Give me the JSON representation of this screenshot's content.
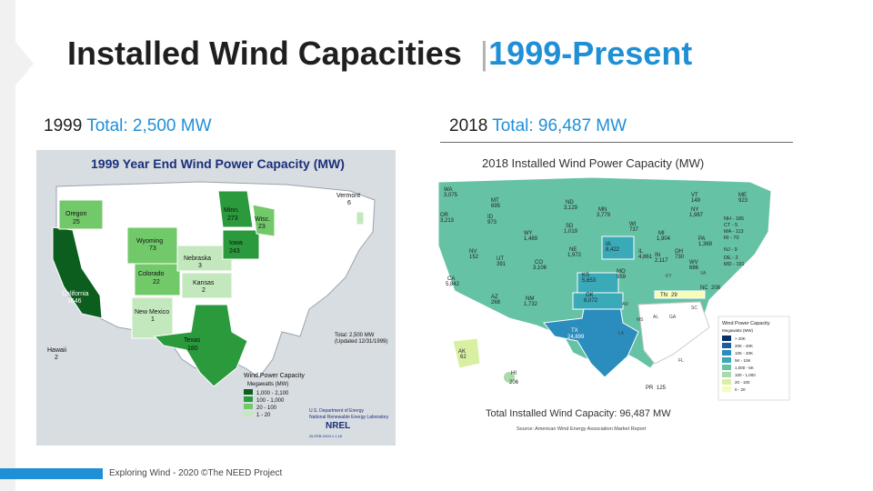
{
  "slide": {
    "title": "Installed Wind Capacities",
    "title_separator": "|",
    "title_accent": "1999-Present",
    "left_label": "1999",
    "left_total": "Total: 2,500 MW",
    "right_label": "2018",
    "right_total": "Total: 96,487 MW",
    "footer": "Exploring Wind - 2020 ©The NEED Project"
  },
  "map1999": {
    "title": "1999 Year End Wind Power Capacity (MW)",
    "states": [
      {
        "name": "Oregon",
        "value": "25"
      },
      {
        "name": "California",
        "value": "1646"
      },
      {
        "name": "Wyoming",
        "value": "73"
      },
      {
        "name": "Colorado",
        "value": "22"
      },
      {
        "name": "New Mexico",
        "value": "1"
      },
      {
        "name": "Texas",
        "value": "180"
      },
      {
        "name": "Nebraska",
        "value": "3"
      },
      {
        "name": "Kansas",
        "value": "2"
      },
      {
        "name": "Minn.",
        "value": "273"
      },
      {
        "name": "Iowa",
        "value": "243"
      },
      {
        "name": "Wisc.",
        "value": "23"
      },
      {
        "name": "Vermont",
        "value": "6"
      },
      {
        "name": "Hawaii",
        "value": "2"
      }
    ],
    "total_box": {
      "line1": "Total: 2,500 MW",
      "line2": "(Updated 12/31/1999)"
    },
    "legend": {
      "title": "Wind Power Capacity",
      "subtitle": "Megawatts (MW)",
      "items": [
        {
          "label": "1,000 - 2,100",
          "color": "#0c5e1e"
        },
        {
          "label": "100 - 1,000",
          "color": "#2a9a3c"
        },
        {
          "label": "20 - 100",
          "color": "#72c96a"
        },
        {
          "label": "1 - 20",
          "color": "#c4e8bd"
        }
      ]
    },
    "credits": [
      "U.S. Department of Energy",
      "National Renewable Energy Laboratory"
    ],
    "nrel_logo": "NREL",
    "date_code": "26-FEB-2004 1.1.18"
  },
  "map2018": {
    "title": "2018 Installed Wind Power Capacity (MW)",
    "states": [
      {
        "name": "WA",
        "value": "3,075"
      },
      {
        "name": "OR",
        "value": "3,213"
      },
      {
        "name": "MT",
        "value": "695"
      },
      {
        "name": "ID",
        "value": "973"
      },
      {
        "name": "WY",
        "value": "1,489"
      },
      {
        "name": "ND",
        "value": "3,129"
      },
      {
        "name": "SD",
        "value": "1,019"
      },
      {
        "name": "MN",
        "value": "3,779"
      },
      {
        "name": "NE",
        "value": "1,972"
      },
      {
        "name": "IA",
        "value": "8,422"
      },
      {
        "name": "WI",
        "value": "737"
      },
      {
        "name": "MI",
        "value": "1,904"
      },
      {
        "name": "NY",
        "value": "1,987"
      },
      {
        "name": "VT",
        "value": "149"
      },
      {
        "name": "ME",
        "value": "923"
      },
      {
        "name": "NV",
        "value": "152"
      },
      {
        "name": "UT",
        "value": "391"
      },
      {
        "name": "CO",
        "value": "3,106"
      },
      {
        "name": "CA",
        "value": "5,842"
      },
      {
        "name": "AZ",
        "value": "268"
      },
      {
        "name": "NM",
        "value": "1,732"
      },
      {
        "name": "KS",
        "value": "5,653"
      },
      {
        "name": "OK",
        "value": "8,072"
      },
      {
        "name": "TX",
        "value": "24,899"
      },
      {
        "name": "MO",
        "value": "959"
      },
      {
        "name": "IL",
        "value": "4,861"
      },
      {
        "name": "IN",
        "value": "2,117"
      },
      {
        "name": "OH",
        "value": "730"
      },
      {
        "name": "PA",
        "value": "1,369"
      },
      {
        "name": "WV",
        "value": "686"
      },
      {
        "name": "TN",
        "value": "29"
      },
      {
        "name": "NC",
        "value": "208"
      },
      {
        "name": "AK",
        "value": "62"
      },
      {
        "name": "HI",
        "value": "206"
      },
      {
        "name": "PR",
        "value": "125"
      }
    ],
    "northeast_list": [
      "NH - 185",
      "CT - 5",
      "MA - 113",
      "RI - 70",
      "NJ - 9",
      "DE - 2",
      "MD - 191"
    ],
    "small_labels": [
      "AR",
      "MS",
      "AL",
      "GA",
      "SC",
      "LA",
      "FL",
      "KY",
      "VA"
    ],
    "legend": {
      "title": "Wind Power Capacity",
      "subtitle": "Megawatts (MW)",
      "items": [
        {
          "label": "> 20K",
          "color": "#08306b"
        },
        {
          "label": "20K - 40K",
          "color": "#1a5fa0"
        },
        {
          "label": "10K - 20K",
          "color": "#2b8cbe"
        },
        {
          "label": "5K - 10K",
          "color": "#3aa9b8"
        },
        {
          "label": "1,000 - 5K",
          "color": "#66c2a4"
        },
        {
          "label": "100 - 1,000",
          "color": "#a7dba9"
        },
        {
          "label": "20 - 100",
          "color": "#d9f0a3"
        },
        {
          "label": "0 - 20",
          "color": "#f7fcb9"
        }
      ]
    },
    "total": "Total Installed Wind Capacity: 96,487 MW",
    "source": "Source: American Wind Energy Association Market Report"
  }
}
